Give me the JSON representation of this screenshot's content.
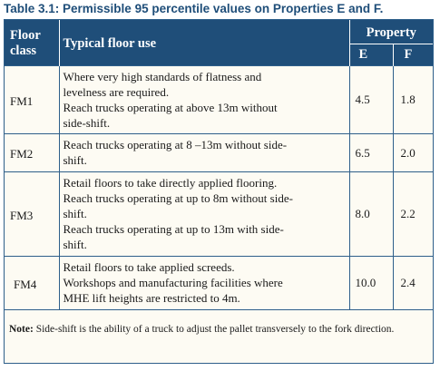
{
  "caption": "Table 3.1: Permissible 95 percentile values on Properties E and F.",
  "headers": {
    "floor_class": [
      "Floor",
      "class"
    ],
    "typical_use": "Typical floor use",
    "property": "Property",
    "e": "E",
    "f": "F"
  },
  "rows": [
    {
      "class": "FM1",
      "use": [
        "Where very high standards of flatness and",
        "levelness are required.",
        "Reach trucks operating at above 13m without",
        "side-shift."
      ],
      "e": "4.5",
      "f": "1.8"
    },
    {
      "class": "FM2",
      "use": [
        "Reach trucks operating at 8 –13m without side-",
        "shift."
      ],
      "e": "6.5",
      "f": "2.0"
    },
    {
      "class": "FM3",
      "use": [
        "Retail floors to take directly applied flooring.",
        "Reach trucks operating at up to 8m without side-",
        "shift.",
        "Reach trucks operating at up to 13m with side-",
        "shift."
      ],
      "e": "8.0",
      "f": "2.2"
    },
    {
      "class": "FM4",
      "use": [
        "Retail floors to take applied screeds.",
        "Workshops and manufacturing facilities where",
        "MHE lift heights are restricted to 4m."
      ],
      "e": "10.0",
      "f": "2.4"
    }
  ],
  "note": {
    "label": "Note:",
    "text": " Side-shift is the ability of a truck to adjust the pallet transversely to the fork direction."
  }
}
